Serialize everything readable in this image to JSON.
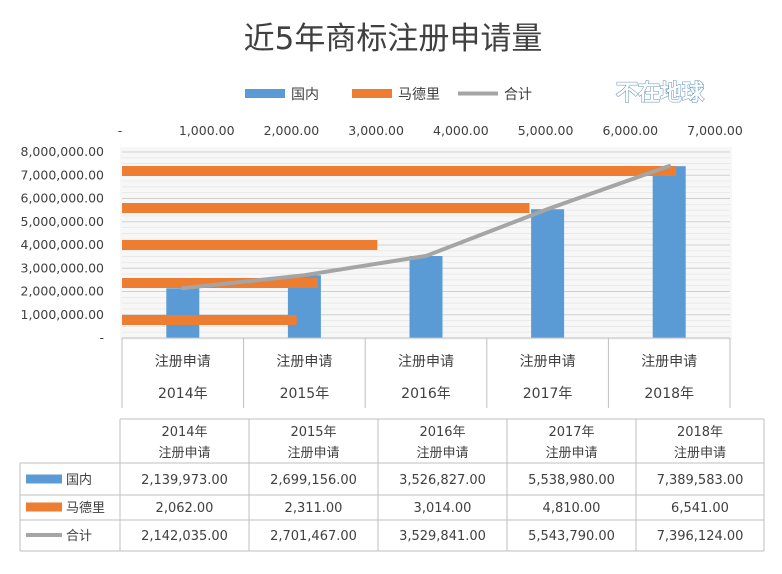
{
  "chart_data": {
    "type": "bar",
    "title": "近5年商标注册申请量",
    "watermark": "不在地球",
    "categories": [
      {
        "label": "注册申请",
        "year": "2014年"
      },
      {
        "label": "注册申请",
        "year": "2015年"
      },
      {
        "label": "注册申请",
        "year": "2016年"
      },
      {
        "label": "注册申请",
        "year": "2017年"
      },
      {
        "label": "注册申请",
        "year": "2018年"
      }
    ],
    "series": [
      {
        "name": "国内",
        "type": "column",
        "axis": "primary",
        "color": "#5b9bd5",
        "values": [
          2139973,
          2699156,
          3526827,
          5538980,
          7389583
        ],
        "display": [
          "2,139,973.00",
          "2,699,156.00",
          "3,526,827.00",
          "5,538,980.00",
          "7,389,583.00"
        ]
      },
      {
        "name": "马德里",
        "type": "bar",
        "axis": "secondary",
        "color": "#ed7d31",
        "values": [
          2062,
          2311,
          3014,
          4810,
          6541
        ],
        "display": [
          "2,062.00",
          "2,311.00",
          "3,014.00",
          "4,810.00",
          "6,541.00"
        ]
      },
      {
        "name": "合计",
        "type": "line",
        "axis": "primary",
        "color": "#a5a5a5",
        "values": [
          2142035,
          2701467,
          3529841,
          5543790,
          7396124
        ],
        "display": [
          "2,142,035.00",
          "2,701,467.00",
          "3,529,841.00",
          "5,543,790.00",
          "7,396,124.00"
        ]
      }
    ],
    "primary_axis": {
      "ylim": [
        0,
        8000000
      ],
      "ticks": [
        {
          "value": 0,
          "label": "-"
        },
        {
          "value": 1000000,
          "label": "1,000,000.00"
        },
        {
          "value": 2000000,
          "label": "2,000,000.00"
        },
        {
          "value": 3000000,
          "label": "3,000,000.00"
        },
        {
          "value": 4000000,
          "label": "4,000,000.00"
        },
        {
          "value": 5000000,
          "label": "5,000,000.00"
        },
        {
          "value": 6000000,
          "label": "6,000,000.00"
        },
        {
          "value": 7000000,
          "label": "7,000,000.00"
        },
        {
          "value": 8000000,
          "label": "8,000,000.00"
        }
      ]
    },
    "secondary_axis": {
      "xlim": [
        0,
        7000
      ],
      "position": "top",
      "ticks": [
        {
          "value": 0,
          "label": "-"
        },
        {
          "value": 1000,
          "label": "1,000.00"
        },
        {
          "value": 2000,
          "label": "2,000.00"
        },
        {
          "value": 3000,
          "label": "3,000.00"
        },
        {
          "value": 4000,
          "label": "4,000.00"
        },
        {
          "value": 5000,
          "label": "5,000.00"
        },
        {
          "value": 6000,
          "label": "6,000.00"
        },
        {
          "value": 7000,
          "label": "7,000.00"
        }
      ]
    },
    "legend_position": "top",
    "grid": true,
    "data_table": true
  }
}
